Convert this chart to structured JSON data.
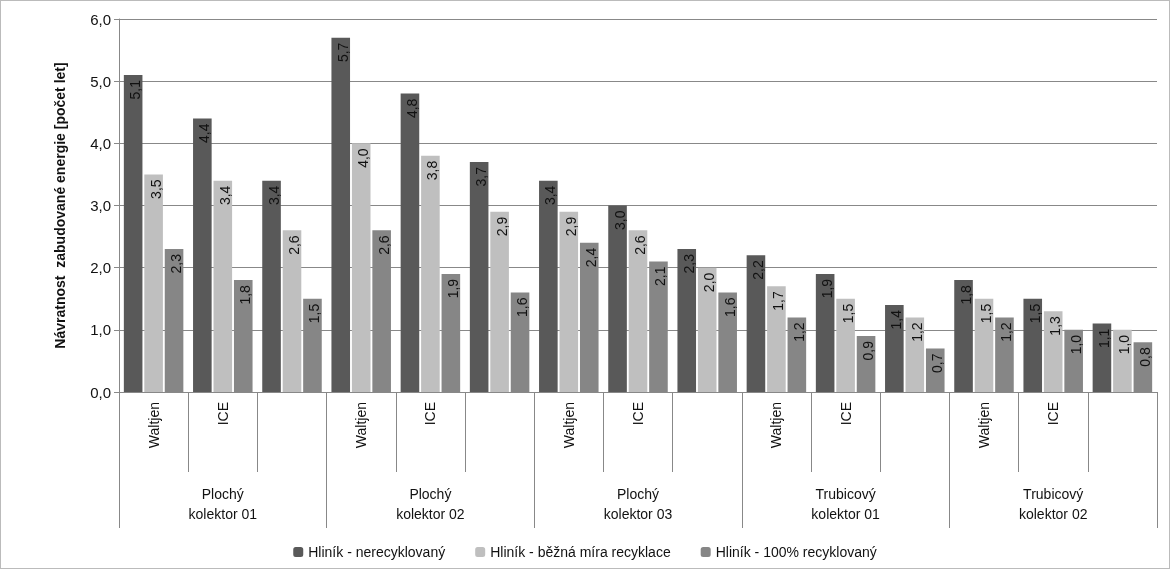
{
  "chart_data": {
    "type": "bar",
    "ylabel": "Návratnost  zabudované energie [počet let]",
    "categories": [
      "Waltjen",
      "ICE",
      null,
      "Waltjen",
      "ICE",
      null,
      "Waltjen",
      "ICE",
      null,
      "Waltjen",
      "ICE",
      null,
      "Waltjen",
      "ICE",
      null
    ],
    "annotations": [
      "Plochý\nkolektor 01",
      "Plochý\nkolektor 02",
      "Plochý\nkolektor 03",
      "Trubicový\nkolektor 01",
      "Trubicový\nkolektor 02"
    ],
    "series": [
      {
        "name": "Hliník - nerecyklovaný",
        "color": "#595959",
        "values": [
          5.1,
          4.4,
          3.4,
          5.7,
          4.8,
          3.7,
          3.4,
          3.0,
          2.3,
          2.2,
          1.9,
          1.4,
          1.8,
          1.5,
          1.1
        ],
        "value_labels": [
          "5,1",
          "4,4",
          "3,4",
          "5,7",
          "4,8",
          "3,7",
          "3,4",
          "3,0",
          "2,3",
          "2,2",
          "1,9",
          "1,4",
          "1,8",
          "1,5",
          "1,1"
        ]
      },
      {
        "name": "Hliník - běžná míra recyklace",
        "color": "#bfbfbf",
        "values": [
          3.5,
          3.4,
          2.6,
          4.0,
          3.8,
          2.9,
          2.9,
          2.6,
          2.0,
          1.7,
          1.5,
          1.2,
          1.5,
          1.3,
          1.0
        ],
        "value_labels": [
          "3,5",
          "3,4",
          "2,6",
          "4,0",
          "3,8",
          "2,9",
          "2,9",
          "2,6",
          "2,0",
          "1,7",
          "1,5",
          "1,2",
          "1,5",
          "1,3",
          "1,0"
        ]
      },
      {
        "name": "Hliník - 100% recyklovaný",
        "color": "#868686",
        "values": [
          2.3,
          1.8,
          1.5,
          2.6,
          1.9,
          1.6,
          2.4,
          2.1,
          1.6,
          1.2,
          0.9,
          0.7,
          1.2,
          1.0,
          0.8
        ],
        "value_labels": [
          "2,3",
          "1,8",
          "1,5",
          "2,6",
          "1,9",
          "1,6",
          "2,4",
          "2,1",
          "1,6",
          "1,2",
          "0,9",
          "0,7",
          "1,2",
          "1,0",
          "0,8"
        ]
      }
    ],
    "ylim": [
      0,
      6
    ],
    "yticks": [
      {
        "value": 0,
        "label": "0,0"
      },
      {
        "value": 1,
        "label": "1,0"
      },
      {
        "value": 2,
        "label": "2,0"
      },
      {
        "value": 3,
        "label": "3,0"
      },
      {
        "value": 4,
        "label": "4,0"
      },
      {
        "value": 5,
        "label": "5,0"
      },
      {
        "value": 6,
        "label": "6,0"
      }
    ],
    "grid": "y",
    "legend": "bottom"
  }
}
